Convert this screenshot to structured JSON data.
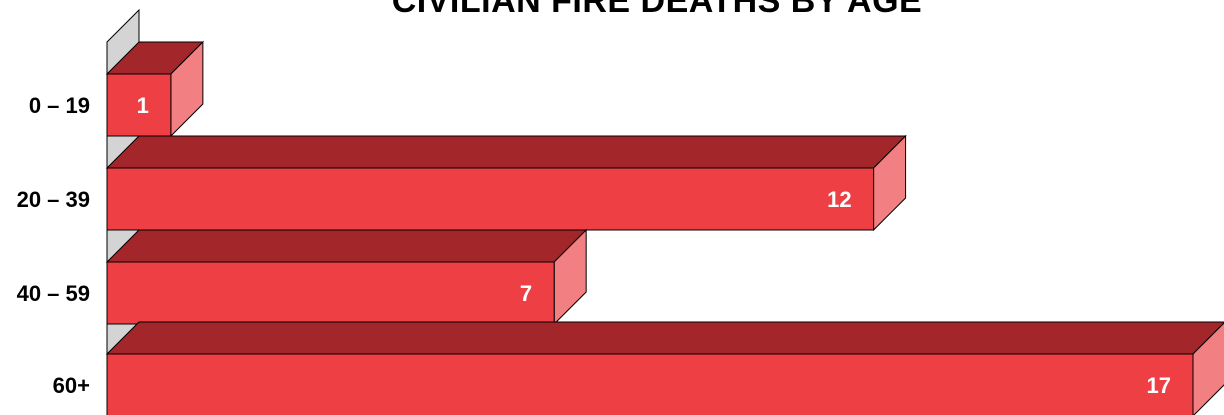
{
  "chart_data": {
    "type": "bar",
    "orientation": "horizontal",
    "style": "3d",
    "title": "CIVILIAN FIRE DEATHS BY AGE",
    "categories": [
      "0 – 19",
      "20 – 39",
      "40 – 59",
      "60+"
    ],
    "values": [
      1,
      12,
      7,
      17
    ],
    "value_labels": [
      "1",
      "12",
      "7",
      "17"
    ],
    "xlim": [
      0,
      17
    ],
    "grid": false,
    "legend": "none",
    "colors": {
      "bar_front": "#ee3f44",
      "bar_top": "#a3262b",
      "bar_side": "#f28082",
      "wall": "#d4d4d4",
      "outline": "#000000"
    }
  }
}
